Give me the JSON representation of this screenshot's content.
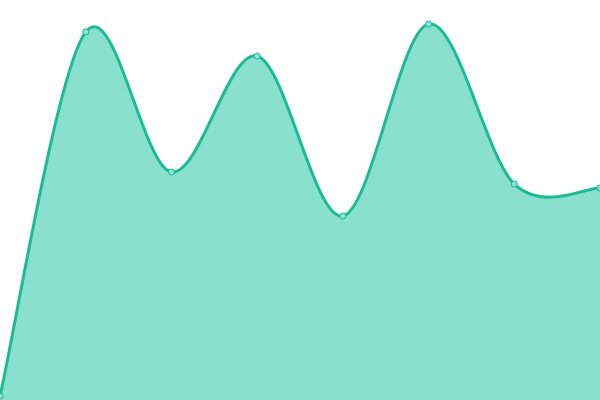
{
  "chart_data": {
    "type": "area",
    "title": "",
    "xlabel": "",
    "ylabel": "",
    "x": [
      0,
      1,
      2,
      3,
      4,
      5,
      6,
      7
    ],
    "values": [
      1,
      92,
      57,
      86,
      46,
      94,
      54,
      53
    ],
    "ylim": [
      0,
      100
    ],
    "grid": false,
    "axes_visible": false,
    "curve": "smooth",
    "colors": {
      "line": "#1dbb94",
      "fill": "#89e0cf",
      "point_fill": "#8ee3d1"
    }
  }
}
